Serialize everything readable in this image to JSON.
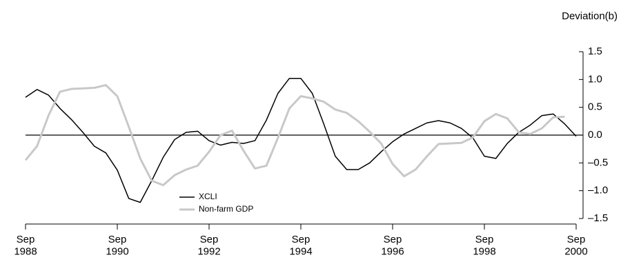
{
  "chart_data": {
    "type": "line",
    "y_axis_label": "Deviation(b)",
    "x": [
      1988.75,
      1989.0,
      1989.25,
      1989.5,
      1989.75,
      1990.0,
      1990.25,
      1990.5,
      1990.75,
      1991.0,
      1991.25,
      1991.5,
      1991.75,
      1992.0,
      1992.25,
      1992.5,
      1992.75,
      1993.0,
      1993.25,
      1993.5,
      1993.75,
      1994.0,
      1994.25,
      1994.5,
      1994.75,
      1995.0,
      1995.25,
      1995.5,
      1995.75,
      1996.0,
      1996.25,
      1996.5,
      1996.75,
      1997.0,
      1997.25,
      1997.5,
      1997.75,
      1998.0,
      1998.25,
      1998.5,
      1998.75,
      1999.0,
      1999.25,
      1999.5,
      1999.75,
      2000.0,
      2000.25,
      2000.5,
      2000.75
    ],
    "series": [
      {
        "name": "XCLI",
        "color": "#000000",
        "values": [
          0.68,
          0.82,
          0.72,
          0.48,
          0.28,
          0.05,
          -0.2,
          -0.32,
          -0.63,
          -1.14,
          -1.21,
          -0.82,
          -0.4,
          -0.08,
          0.05,
          0.07,
          -0.1,
          -0.18,
          -0.13,
          -0.15,
          -0.1,
          0.27,
          0.75,
          1.02,
          1.02,
          0.75,
          0.2,
          -0.38,
          -0.62,
          -0.62,
          -0.5,
          -0.3,
          -0.12,
          0.02,
          0.12,
          0.22,
          0.26,
          0.22,
          0.12,
          -0.05,
          -0.38,
          -0.42,
          -0.15,
          0.05,
          0.18,
          0.35,
          0.38,
          0.2,
          -0.02
        ]
      },
      {
        "name": "Non-farm GDP",
        "color": "#c8c8c8",
        "values": [
          -0.45,
          -0.2,
          0.35,
          0.78,
          0.83,
          0.84,
          0.85,
          0.9,
          0.7,
          0.15,
          -0.42,
          -0.82,
          -0.9,
          -0.72,
          -0.62,
          -0.55,
          -0.3,
          0.0,
          0.08,
          -0.28,
          -0.6,
          -0.55,
          -0.05,
          0.48,
          0.7,
          0.66,
          0.6,
          0.46,
          0.4,
          0.25,
          0.06,
          -0.15,
          -0.52,
          -0.74,
          -0.62,
          -0.38,
          -0.16,
          -0.15,
          -0.14,
          -0.04,
          0.25,
          0.38,
          0.3,
          0.05,
          0.02,
          0.12,
          0.32,
          0.33,
          null
        ]
      }
    ],
    "xlim": [
      1988.75,
      2000.75
    ],
    "xticks": [
      {
        "value": 1988.75,
        "label": "Sep 1988"
      },
      {
        "value": 1990.75,
        "label": "Sep 1990"
      },
      {
        "value": 1992.75,
        "label": "Sep 1992"
      },
      {
        "value": 1994.75,
        "label": "Sep 1994"
      },
      {
        "value": 1996.75,
        "label": "Sep 1996"
      },
      {
        "value": 1998.75,
        "label": "Sep 1998"
      },
      {
        "value": 2000.75,
        "label": "Sep 2000"
      }
    ],
    "ylim": [
      -1.5,
      1.5
    ],
    "yticks": [
      1.5,
      {
        "value": 1.0,
        "label": "1.0"
      },
      0.5,
      {
        "value": 0.0,
        "label": "0.0"
      },
      {
        "value": -0.5,
        "label": "–0.5"
      },
      {
        "value": -1.0,
        "label": "–1.0"
      },
      {
        "value": -1.5,
        "label": "–1.5"
      }
    ],
    "y_axis_side": "right"
  }
}
